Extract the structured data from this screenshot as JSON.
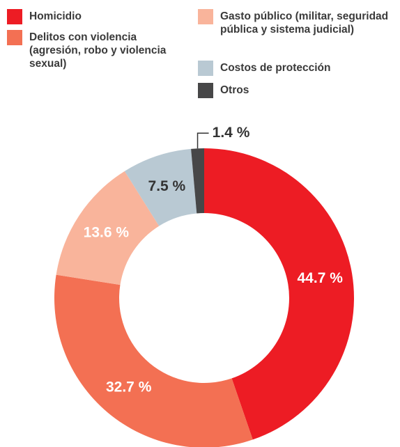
{
  "chart_data": {
    "type": "donut",
    "categories": [
      "Homicidio",
      "Delitos con violencia (agresión, robo y violencia sexual)",
      "Gasto público (militar, seguridad pública y sistema judicial)",
      "Costos de protección",
      "Otros"
    ],
    "values": [
      44.7,
      32.7,
      13.6,
      7.5,
      1.4
    ],
    "value_labels": [
      "44.7 %",
      "32.7 %",
      "13.6 %",
      "7.5 %",
      "1.4 %"
    ],
    "colors": [
      "#ed1c24",
      "#f37053",
      "#f9b49b",
      "#b9c9d3",
      "#474748"
    ]
  }
}
